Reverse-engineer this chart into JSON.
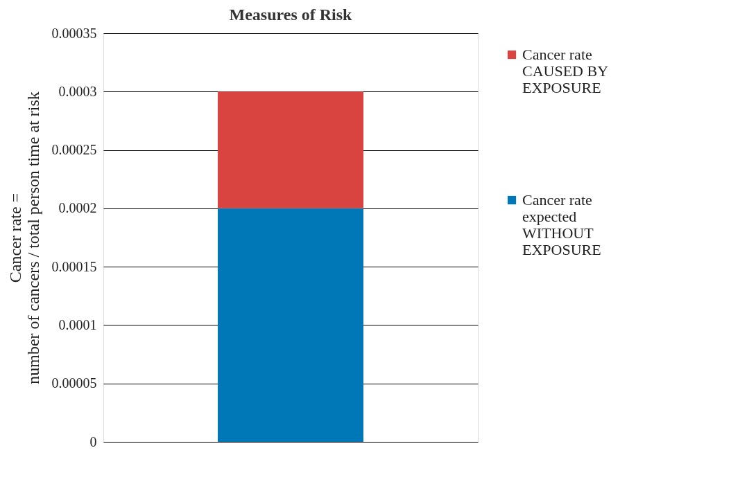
{
  "chart_data": {
    "type": "bar",
    "title": "Measures of Risk",
    "ylabel": "Cancer rate =\nnumber of cancers / total person time at risk",
    "categories": [
      null
    ],
    "stacked": true,
    "series": [
      {
        "name": "Cancer rate expected WITHOUT EXPOSURE",
        "color": "#0077b6",
        "values": [
          0.0002
        ]
      },
      {
        "name": "Cancer rate CAUSED BY EXPOSURE",
        "color": "#d94440",
        "values": [
          0.0001
        ]
      }
    ],
    "ylim": [
      0,
      0.00035
    ],
    "yticks": [
      0,
      {
        "value": 5e-05,
        "label": "0.00005"
      },
      0.0001,
      0.00015,
      0.0002,
      0.00025,
      0.0003,
      0.00035
    ],
    "grid": "y",
    "legend": "right"
  }
}
